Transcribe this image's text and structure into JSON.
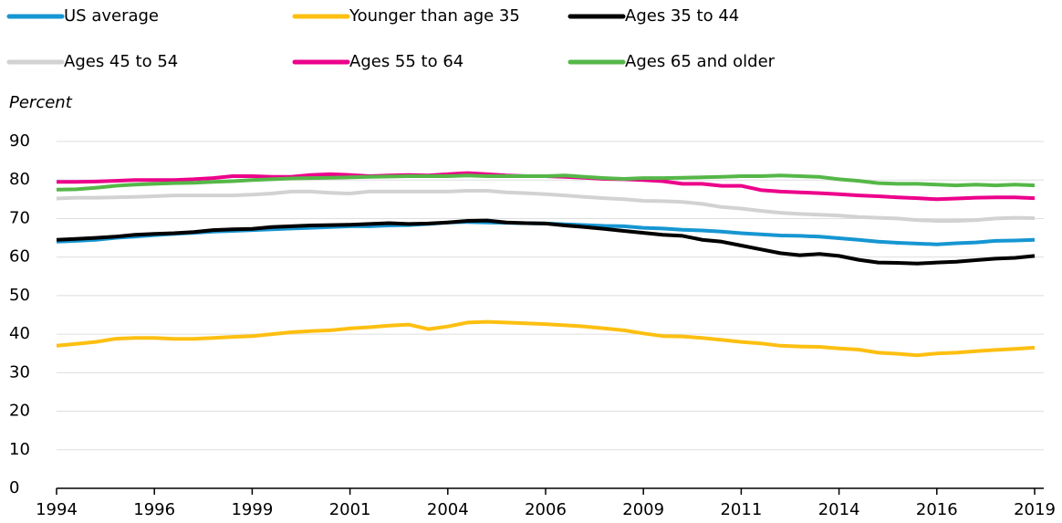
{
  "chart_data": {
    "type": "line",
    "y_label": "Percent",
    "categories": [
      "1994",
      null,
      null,
      null,
      null,
      "1996",
      null,
      null,
      null,
      null,
      "1999",
      null,
      null,
      null,
      null,
      "2001",
      null,
      null,
      null,
      null,
      "2004",
      null,
      null,
      null,
      null,
      "2006",
      null,
      null,
      null,
      null,
      "2009",
      null,
      null,
      null,
      null,
      "2011",
      null,
      null,
      null,
      null,
      "2014",
      null,
      null,
      null,
      null,
      "2016",
      null,
      null,
      null,
      null,
      "2019"
    ],
    "series": [
      {
        "name": "US average",
        "color": "#1696d2",
        "values": [
          64,
          64.2,
          64.5,
          65,
          65.3,
          65.7,
          66,
          66.3,
          66.6,
          66.8,
          67,
          67.2,
          67.4,
          67.6,
          67.8,
          68,
          68,
          68.2,
          68.3,
          68.6,
          69,
          69.1,
          69,
          68.9,
          68.8,
          68.7,
          68.5,
          68.3,
          68.1,
          68,
          67.6,
          67.4,
          67.1,
          66.9,
          66.6,
          66.2,
          65.9,
          65.6,
          65.5,
          65.3,
          64.9,
          64.5,
          64,
          63.7,
          63.5,
          63.3,
          63.6,
          63.8,
          64.2,
          64.3,
          64.5
        ]
      },
      {
        "name": "Younger than age 35",
        "color": "#fdbf11",
        "values": [
          37,
          37.5,
          38,
          38.8,
          39,
          39,
          38.8,
          38.8,
          39,
          39.3,
          39.5,
          40,
          40.5,
          40.8,
          41,
          41.5,
          41.8,
          42.2,
          42.5,
          41.3,
          42,
          43,
          43.2,
          43,
          42.8,
          42.6,
          42.3,
          42,
          41.5,
          41,
          40.2,
          39.5,
          39.4,
          39,
          38.5,
          38,
          37.6,
          37,
          36.8,
          36.7,
          36.3,
          36,
          35.2,
          34.9,
          34.5,
          35,
          35.2,
          35.6,
          35.9,
          36.2,
          36.5
        ]
      },
      {
        "name": "Ages 35 to 44",
        "color": "#000000",
        "values": [
          64.5,
          64.7,
          65,
          65.3,
          65.8,
          66,
          66.2,
          66.5,
          67,
          67.2,
          67.3,
          67.8,
          68,
          68.2,
          68.3,
          68.4,
          68.6,
          68.8,
          68.6,
          68.7,
          69,
          69.4,
          69.5,
          69,
          68.8,
          68.7,
          68.2,
          67.8,
          67.3,
          66.8,
          66.3,
          65.8,
          65.5,
          64.5,
          64,
          63,
          62,
          61,
          60.5,
          60.8,
          60.3,
          59.3,
          58.6,
          58.5,
          58.3,
          58.6,
          58.8,
          59.2,
          59.6,
          59.8,
          60.3
        ]
      },
      {
        "name": "Ages 45 to 54",
        "color": "#d2d2d2",
        "values": [
          75.2,
          75.4,
          75.4,
          75.5,
          75.6,
          75.8,
          76,
          76,
          76,
          76,
          76.2,
          76.5,
          77,
          77,
          76.7,
          76.5,
          77,
          77,
          77,
          77,
          77,
          77.2,
          77.2,
          76.8,
          76.6,
          76.3,
          76,
          75.6,
          75.3,
          75,
          74.6,
          74.5,
          74.3,
          73.8,
          73,
          72.6,
          72,
          71.5,
          71.2,
          71,
          70.8,
          70.4,
          70.2,
          70,
          69.6,
          69.4,
          69.4,
          69.6,
          70,
          70.2,
          70.1
        ]
      },
      {
        "name": "Ages 55 to 64",
        "color": "#ec008b",
        "values": [
          79.5,
          79.5,
          79.6,
          79.8,
          80,
          80,
          80,
          80.2,
          80.5,
          81,
          81,
          80.8,
          80.8,
          81.3,
          81.5,
          81.3,
          81,
          81.2,
          81.3,
          81.2,
          81.5,
          81.8,
          81.5,
          81.2,
          81,
          81,
          80.8,
          80.6,
          80.3,
          80.2,
          80,
          79.7,
          79,
          79,
          78.5,
          78.5,
          77.4,
          77,
          76.8,
          76.6,
          76.3,
          76,
          75.8,
          75.5,
          75.3,
          75,
          75.2,
          75.4,
          75.5,
          75.5,
          75.3
        ]
      },
      {
        "name": "Ages 65 and older",
        "color": "#55b748",
        "values": [
          77.5,
          77.6,
          78,
          78.5,
          78.8,
          79,
          79.2,
          79.3,
          79.5,
          79.7,
          80,
          80.2,
          80.4,
          80.5,
          80.6,
          80.7,
          80.8,
          80.9,
          81,
          81,
          81,
          81.2,
          81,
          81,
          81,
          81,
          81.2,
          80.8,
          80.5,
          80.3,
          80.5,
          80.5,
          80.6,
          80.7,
          80.8,
          81,
          81,
          81.2,
          81,
          80.8,
          80.2,
          79.8,
          79.2,
          79,
          79,
          78.8,
          78.6,
          78.8,
          78.6,
          78.8,
          78.6
        ]
      }
    ],
    "ylim": [
      0,
      90
    ],
    "yticks": [
      0,
      10,
      20,
      30,
      40,
      50,
      60,
      70,
      80,
      90
    ],
    "grid": true
  }
}
